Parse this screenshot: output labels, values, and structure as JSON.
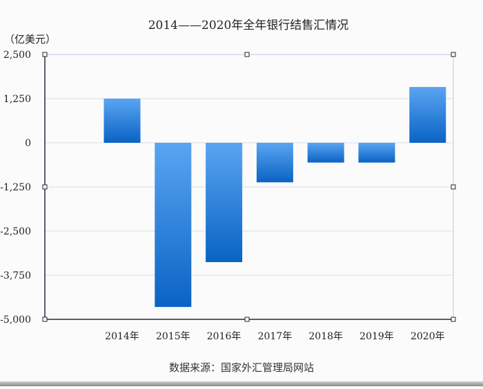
{
  "chart_data": {
    "type": "bar",
    "title": "2014——2020年全年银行结售汇情况",
    "unit_label": "（亿美元）",
    "source": "数据来源：国家外汇管理局网站",
    "categories": [
      "2014年",
      "2015年",
      "2016年",
      "2017年",
      "2018年",
      "2019年",
      "2020年"
    ],
    "values": [
      1250,
      -4650,
      -3380,
      -1120,
      -560,
      -560,
      1580
    ],
    "ylim": [
      -5000,
      2500
    ],
    "yticks": [
      2500,
      1250,
      0,
      -1250,
      -2500,
      -3750,
      -5000
    ],
    "ytick_labels": [
      "2,500",
      "1,250",
      "0",
      "-1,250",
      "-2,500",
      "-3,750",
      "-5,000"
    ],
    "grid": true,
    "colors": {
      "bar_top": "#5aa5f2",
      "bar_bottom": "#0a63c4",
      "grid": "#d8dce3",
      "axis": "#1f2a44"
    }
  }
}
